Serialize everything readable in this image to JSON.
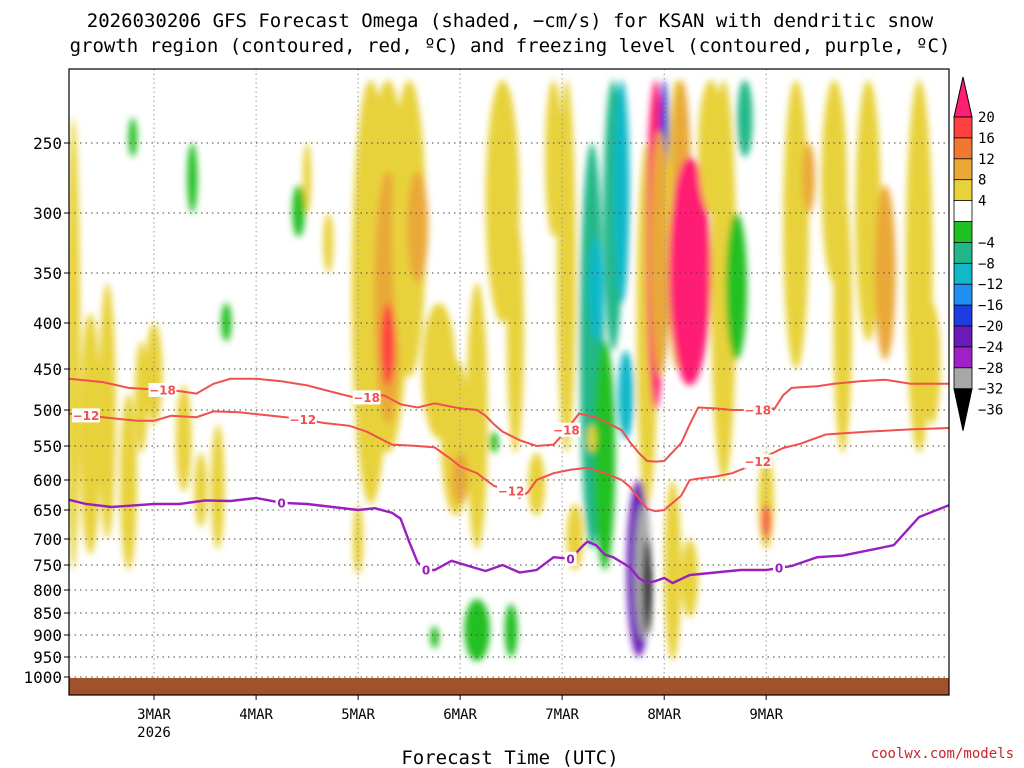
{
  "title_line1": "2026030206 GFS Forecast Omega (shaded, −cm/s) for KSAN with dendritic snow",
  "title_line2": "growth region (contoured, red, ºC) and freezing level (contoured, purple, ºC)",
  "credit": "coolwx.com/models",
  "chart_data": {
    "type": "heatmap",
    "xlabel": "Forecast Time (UTC)",
    "ylabel": "",
    "x_range_hours": [
      -20,
      187
    ],
    "x_ticks": [
      {
        "hour": 0,
        "label": "3MAR",
        "sub": "2026"
      },
      {
        "hour": 24,
        "label": "4MAR",
        "sub": ""
      },
      {
        "hour": 48,
        "label": "5MAR",
        "sub": ""
      },
      {
        "hour": 72,
        "label": "6MAR",
        "sub": ""
      },
      {
        "hour": 96,
        "label": "7MAR",
        "sub": ""
      },
      {
        "hour": 120,
        "label": "8MAR",
        "sub": ""
      },
      {
        "hour": 144,
        "label": "9MAR",
        "sub": ""
      }
    ],
    "y_range_hpa": [
      1020,
      200
    ],
    "y_ticks": [
      250,
      300,
      350,
      400,
      450,
      500,
      550,
      600,
      650,
      700,
      750,
      800,
      850,
      900,
      950,
      1000
    ],
    "colorbar": {
      "labels": [
        "20",
        "16",
        "12",
        "8",
        "4",
        "−4",
        "−8",
        "−12",
        "−16",
        "−20",
        "−24",
        "−28",
        "−32",
        "−36"
      ],
      "colors": [
        "#ff1e73",
        "#ff4040",
        "#f07830",
        "#eaa838",
        "#e8d23a",
        "#ffffff",
        "#20c020",
        "#20b888",
        "#10b8c8",
        "#2090f0",
        "#1e3ce0",
        "#6a1ab8",
        "#a020c8",
        "#a8a8a8",
        "#000000"
      ]
    },
    "freezing_level": {
      "label": "0",
      "color": "#9a1ec0",
      "hours": [
        -20,
        -16,
        -10,
        -4,
        0,
        6,
        12,
        18,
        24,
        30,
        36,
        42,
        48,
        52,
        56,
        58,
        60,
        62,
        64,
        66,
        70,
        74,
        78,
        82,
        86,
        90,
        94,
        98,
        101,
        102,
        104,
        106,
        108,
        112,
        114,
        116,
        118,
        120,
        122,
        126,
        132,
        138,
        144,
        150,
        156,
        162,
        168,
        174,
        180,
        187
      ],
      "hpa": [
        633,
        640,
        645,
        642,
        640,
        640,
        634,
        635,
        630,
        638,
        640,
        645,
        650,
        647,
        655,
        665,
        705,
        745,
        760,
        760,
        742,
        752,
        762,
        750,
        765,
        760,
        735,
        738,
        712,
        705,
        712,
        730,
        735,
        755,
        776,
        786,
        782,
        776,
        786,
        770,
        765,
        760,
        760,
        752,
        735,
        732,
        722,
        712,
        662,
        642
      ]
    },
    "isotherm_minus18": {
      "label": "−18",
      "color": "#f05050",
      "hours": [
        -20,
        -12,
        -6,
        0,
        6,
        10,
        14,
        18,
        24,
        30,
        36,
        42,
        48,
        54,
        58,
        62,
        66,
        72,
        76,
        78,
        80,
        82,
        86,
        90,
        94,
        96,
        98,
        100,
        104,
        108,
        110,
        112,
        114,
        116,
        118,
        120,
        124,
        126,
        128,
        132,
        136,
        142,
        146,
        148,
        150,
        156,
        160,
        166,
        172,
        178,
        187
      ],
      "hpa": [
        462,
        466,
        473,
        475,
        477,
        480,
        468,
        462,
        462,
        465,
        470,
        478,
        486,
        482,
        493,
        497,
        492,
        498,
        500,
        508,
        520,
        530,
        542,
        550,
        548,
        535,
        520,
        505,
        510,
        522,
        528,
        545,
        560,
        572,
        573,
        572,
        546,
        520,
        497,
        498,
        500,
        500,
        498,
        482,
        473,
        471,
        468,
        465,
        463,
        468,
        468
      ]
    },
    "isotherm_minus12": {
      "label": "−12",
      "color": "#f05050",
      "hours": [
        -20,
        -12,
        -4,
        0,
        4,
        10,
        14,
        20,
        26,
        34,
        40,
        46,
        50,
        56,
        62,
        66,
        70,
        72,
        76,
        80,
        84,
        86,
        88,
        90,
        94,
        98,
        102,
        106,
        110,
        112,
        114,
        116,
        118,
        120,
        124,
        126,
        128,
        132,
        136,
        140,
        144,
        148,
        152,
        158,
        168,
        178,
        187
      ],
      "hpa": [
        505,
        510,
        515,
        515,
        508,
        510,
        502,
        503,
        507,
        512,
        518,
        522,
        530,
        548,
        550,
        552,
        570,
        580,
        590,
        610,
        618,
        630,
        620,
        600,
        590,
        585,
        582,
        590,
        600,
        612,
        630,
        648,
        652,
        650,
        626,
        600,
        598,
        595,
        590,
        580,
        565,
        553,
        547,
        534,
        530,
        527,
        525
      ]
    }
  }
}
